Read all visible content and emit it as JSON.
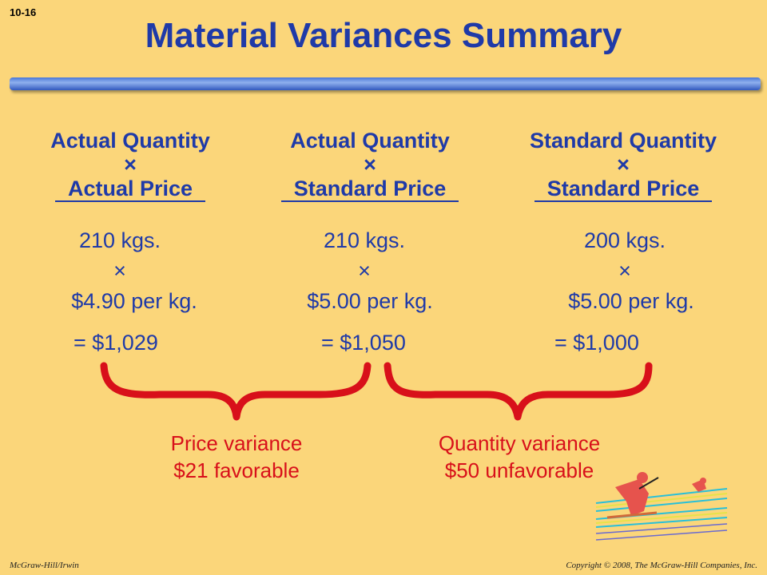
{
  "slide_number": "10-16",
  "title": "Material Variances Summary",
  "columns": [
    {
      "head": "Actual Quantity",
      "times": "×",
      "price_label": "Actual Price",
      "quantity": "210 kgs.",
      "calc_times": "×",
      "price": "$4.90 per kg.",
      "total": "= $1,029"
    },
    {
      "head": "Actual Quantity",
      "times": "×",
      "price_label": "Standard Price",
      "quantity": "210 kgs.",
      "calc_times": "×",
      "price": "$5.00 per kg.",
      "total": "= $1,050"
    },
    {
      "head": "Standard Quantity",
      "times": "×",
      "price_label": "Standard Price",
      "quantity": "200 kgs.",
      "calc_times": "×",
      "price": "$5.00 per kg.",
      "total": "= $1,000"
    }
  ],
  "variances": [
    {
      "name": "Price variance",
      "amount": "$21 favorable"
    },
    {
      "name": "Quantity variance",
      "amount": "$50 unfavorable"
    }
  ],
  "footer": {
    "left": "McGraw-Hill/Irwin",
    "right": "Copyright © 2008, The McGraw-Hill Companies, Inc."
  },
  "colors": {
    "background": "#fbd67a",
    "heading": "#1f3aa8",
    "brace": "#d8101a"
  }
}
